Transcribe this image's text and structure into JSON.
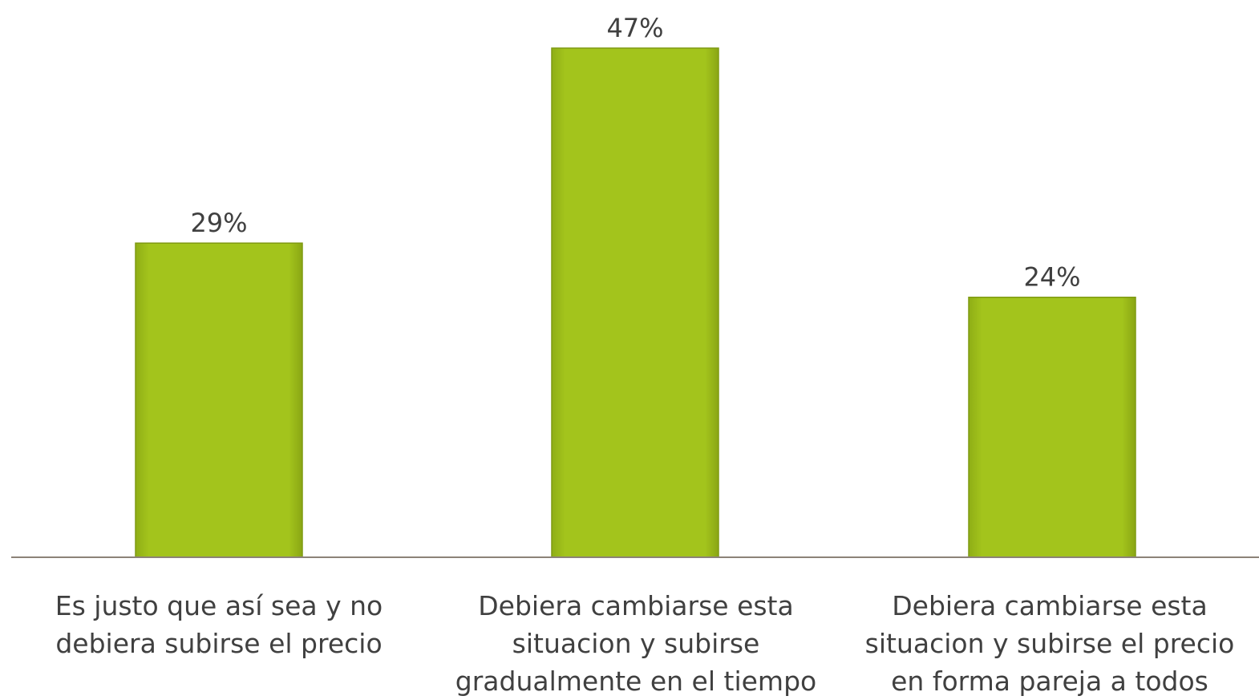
{
  "chart_data": {
    "type": "bar",
    "categories": [
      "Es justo que así sea y no debiera subirse el precio",
      "Debiera cambiarse esta situacion y subirse gradualmente en el tiempo",
      "Debiera cambiarse esta situacion y subirse el precio en forma pareja a todos"
    ],
    "values": [
      29,
      47,
      24
    ],
    "value_labels": [
      "29%",
      "47%",
      "24%"
    ],
    "ylim": [
      0,
      50
    ],
    "grid": false,
    "legend": "none",
    "bar_color": "#a3c41c",
    "axis_color": "#8c8378"
  }
}
